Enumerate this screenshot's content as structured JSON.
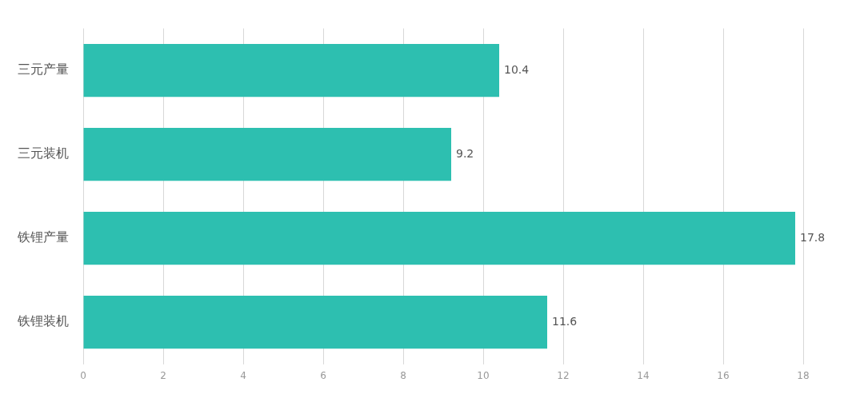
{
  "chart_data": {
    "type": "bar",
    "orientation": "horizontal",
    "categories": [
      "三元产量",
      "三元装机",
      "铁锂产量",
      "铁锂装机"
    ],
    "values": [
      10.4,
      9.2,
      17.8,
      11.6
    ],
    "color": "#2DBFB0",
    "xlim": [
      0,
      18
    ],
    "xticks": [
      0,
      2,
      4,
      6,
      8,
      10,
      12,
      14,
      16,
      18
    ],
    "grid": true,
    "data_labels": true
  }
}
